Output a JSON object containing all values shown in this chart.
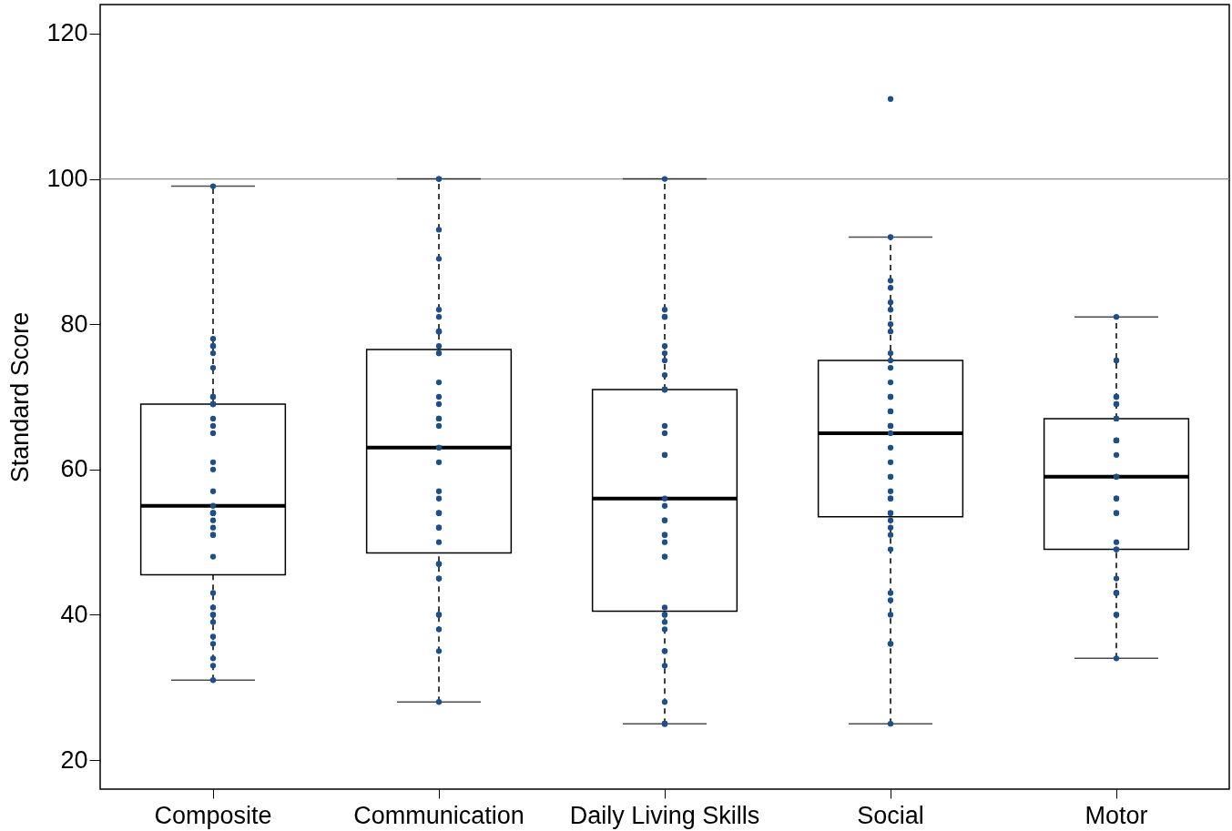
{
  "chart_data": {
    "type": "box",
    "ylabel": "Standard Score",
    "categories": [
      "Composite",
      "Communication",
      "Daily Living Skills",
      "Social",
      "Motor"
    ],
    "boxes": [
      {
        "low": 31,
        "q1": 45.5,
        "median": 55,
        "q3": 69,
        "high": 99
      },
      {
        "low": 28,
        "q1": 48.5,
        "median": 63,
        "q3": 76.5,
        "high": 100
      },
      {
        "low": 25,
        "q1": 40.5,
        "median": 56,
        "q3": 71,
        "high": 100
      },
      {
        "low": 25,
        "q1": 53.5,
        "median": 65,
        "q3": 75,
        "high": 92,
        "outliers": [
          111
        ]
      },
      {
        "low": 34,
        "q1": 49,
        "median": 59,
        "q3": 67,
        "high": 81
      }
    ],
    "series": [
      {
        "type": "scatter",
        "color": "#1f4e8c",
        "marker": "circle",
        "x": [
          "Composite",
          "Composite",
          "Composite",
          "Composite",
          "Composite",
          "Composite",
          "Composite",
          "Composite",
          "Composite",
          "Composite",
          "Composite",
          "Composite",
          "Composite",
          "Composite",
          "Composite",
          "Composite",
          "Composite",
          "Composite",
          "Composite",
          "Composite",
          "Composite",
          "Composite",
          "Composite",
          "Composite",
          "Composite",
          "Composite",
          "Composite",
          "Composite",
          "Composite",
          "Composite",
          "Composite",
          "Composite",
          "Composite",
          "Composite",
          "Composite",
          "Composite",
          "Composite",
          "Communication",
          "Communication",
          "Communication",
          "Communication",
          "Communication",
          "Communication",
          "Communication",
          "Communication",
          "Communication",
          "Communication",
          "Communication",
          "Communication",
          "Communication",
          "Communication",
          "Communication",
          "Communication",
          "Communication",
          "Communication",
          "Communication",
          "Communication",
          "Communication",
          "Communication",
          "Communication",
          "Communication",
          "Communication",
          "Communication",
          "Communication",
          "Communication",
          "Communication",
          "Communication",
          "Communication",
          "Communication",
          "Communication",
          "Communication",
          "Communication",
          "Communication",
          "Communication",
          "Communication",
          "Communication",
          "Daily Living Skills",
          "Daily Living Skills",
          "Daily Living Skills",
          "Daily Living Skills",
          "Daily Living Skills",
          "Daily Living Skills",
          "Daily Living Skills",
          "Daily Living Skills",
          "Daily Living Skills",
          "Daily Living Skills",
          "Daily Living Skills",
          "Daily Living Skills",
          "Daily Living Skills",
          "Daily Living Skills",
          "Daily Living Skills",
          "Daily Living Skills",
          "Daily Living Skills",
          "Daily Living Skills",
          "Daily Living Skills",
          "Daily Living Skills",
          "Daily Living Skills",
          "Daily Living Skills",
          "Daily Living Skills",
          "Daily Living Skills",
          "Daily Living Skills",
          "Daily Living Skills",
          "Daily Living Skills",
          "Daily Living Skills",
          "Daily Living Skills",
          "Daily Living Skills",
          "Daily Living Skills",
          "Daily Living Skills",
          "Daily Living Skills",
          "Daily Living Skills",
          "Daily Living Skills",
          "Daily Living Skills",
          "Daily Living Skills",
          "Daily Living Skills",
          "Social",
          "Social",
          "Social",
          "Social",
          "Social",
          "Social",
          "Social",
          "Social",
          "Social",
          "Social",
          "Social",
          "Social",
          "Social",
          "Social",
          "Social",
          "Social",
          "Social",
          "Social",
          "Social",
          "Social",
          "Social",
          "Social",
          "Social",
          "Social",
          "Social",
          "Social",
          "Social",
          "Social",
          "Social",
          "Social",
          "Social",
          "Social",
          "Social",
          "Social",
          "Social",
          "Social",
          "Social",
          "Motor",
          "Motor",
          "Motor",
          "Motor",
          "Motor",
          "Motor",
          "Motor",
          "Motor",
          "Motor",
          "Motor",
          "Motor",
          "Motor",
          "Motor",
          "Motor",
          "Motor",
          "Motor",
          "Motor",
          "Motor",
          "Motor",
          "Motor",
          "Motor",
          "Motor",
          "Motor",
          "Motor",
          "Motor",
          "Motor",
          "Motor",
          "Motor",
          "Motor",
          "Motor",
          "Motor",
          "Motor"
        ],
        "values": [
          99,
          78,
          77,
          77,
          76,
          74,
          70,
          70,
          69,
          69,
          69,
          67,
          66,
          65,
          61,
          60,
          57,
          55,
          54,
          54,
          54,
          54,
          53,
          52,
          51,
          51,
          48,
          43,
          41,
          40,
          40,
          39,
          37,
          36,
          34,
          33,
          31,
          100,
          100,
          93,
          89,
          82,
          81,
          79,
          79,
          79,
          77,
          76,
          76,
          72,
          70,
          69,
          67,
          67,
          66,
          63,
          63,
          61,
          57,
          56,
          54,
          54,
          54,
          52,
          52,
          50,
          47,
          47,
          47,
          45,
          45,
          40,
          40,
          38,
          35,
          28,
          100,
          82,
          81,
          81,
          77,
          76,
          75,
          73,
          71,
          71,
          71,
          71,
          66,
          65,
          62,
          62,
          56,
          55,
          53,
          53,
          51,
          51,
          50,
          48,
          48,
          41,
          40,
          40,
          39,
          38,
          35,
          35,
          33,
          28,
          25,
          25,
          25,
          25,
          92,
          86,
          85,
          83,
          82,
          80,
          79,
          76,
          75,
          74,
          72,
          70,
          70,
          68,
          68,
          66,
          66,
          65,
          63,
          61,
          59,
          59,
          57,
          56,
          56,
          54,
          54,
          53,
          52,
          51,
          49,
          43,
          42,
          40,
          36,
          36,
          25,
          81,
          75,
          75,
          70,
          70,
          69,
          69,
          67,
          67,
          64,
          64,
          64,
          64,
          62,
          59,
          59,
          59,
          59,
          56,
          56,
          54,
          54,
          50,
          49,
          49,
          45,
          43,
          43,
          43,
          40,
          40,
          34
        ]
      }
    ],
    "ylim": [
      16,
      124
    ],
    "yticks": [
      20,
      40,
      60,
      80,
      100,
      120
    ],
    "ref_lines": [
      {
        "axis": "y",
        "value": 100,
        "color": "#8c8c8c"
      }
    ]
  }
}
